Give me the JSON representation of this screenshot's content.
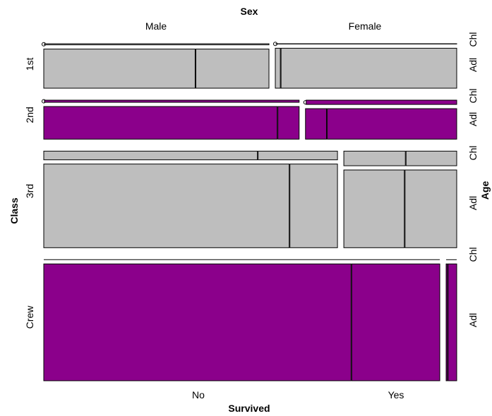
{
  "chart_data": {
    "type": "mosaic",
    "title": "",
    "top_variable": "Sex",
    "left_variable": "Class",
    "right_variable": "Age",
    "bottom_variable": "Survived",
    "sex_levels": [
      "Male",
      "Female"
    ],
    "class_levels": [
      "1st",
      "2nd",
      "3rd",
      "Crew"
    ],
    "age_levels": [
      "Chl",
      "Adl"
    ],
    "survived_levels": [
      "No",
      "Yes"
    ],
    "colors": {
      "purple": "#8b008b",
      "gray": "#bebebe"
    },
    "counts": {
      "1st": {
        "Male": {
          "Chl": {
            "No": 0,
            "Yes": 5
          },
          "Adl": {
            "No": 118,
            "Yes": 57
          }
        },
        "Female": {
          "Chl": {
            "No": 0,
            "Yes": 1
          },
          "Adl": {
            "No": 4,
            "Yes": 140
          }
        }
      },
      "2nd": {
        "Male": {
          "Chl": {
            "No": 0,
            "Yes": 11
          },
          "Adl": {
            "No": 154,
            "Yes": 14
          }
        },
        "Female": {
          "Chl": {
            "No": 0,
            "Yes": 13
          },
          "Adl": {
            "No": 13,
            "Yes": 80
          }
        }
      },
      "3rd": {
        "Male": {
          "Chl": {
            "No": 35,
            "Yes": 13
          },
          "Adl": {
            "No": 387,
            "Yes": 75
          }
        },
        "Female": {
          "Chl": {
            "No": 17,
            "Yes": 14
          },
          "Adl": {
            "No": 89,
            "Yes": 76
          }
        }
      },
      "Crew": {
        "Male": {
          "Chl": {
            "No": 0,
            "Yes": 0
          },
          "Adl": {
            "No": 670,
            "Yes": 192
          }
        },
        "Female": {
          "Chl": {
            "No": 0,
            "Yes": 0
          },
          "Adl": {
            "No": 3,
            "Yes": 20
          }
        }
      }
    },
    "row_colors": {
      "1st": "gray",
      "2nd": "purple",
      "3rd": "gray",
      "Crew": "purple"
    }
  }
}
